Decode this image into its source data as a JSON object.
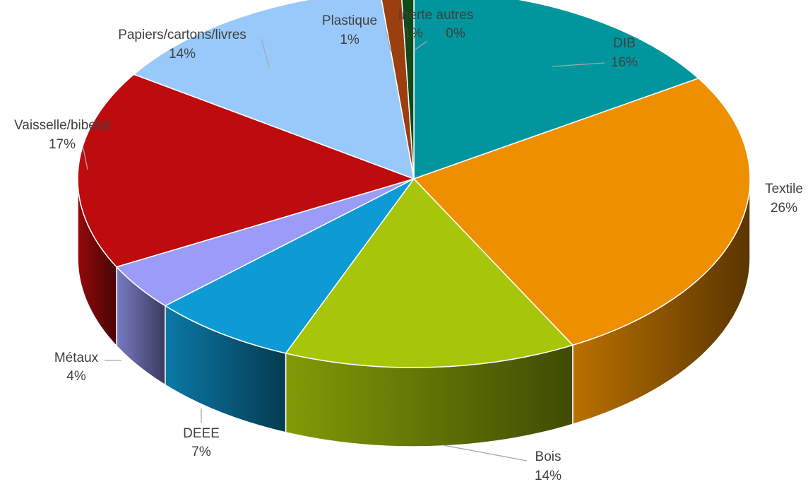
{
  "chart_data": {
    "type": "pie",
    "style": "3d",
    "grid": false,
    "legend": "none",
    "title": "",
    "slices": [
      {
        "name": "DIB",
        "value": 16,
        "label": "16%",
        "color": "#01969E"
      },
      {
        "name": "Textile",
        "value": 26,
        "label": "26%",
        "color": "#EE8F00"
      },
      {
        "name": "Bois",
        "value": 14,
        "label": "14%",
        "color": "#A8C609"
      },
      {
        "name": "DEEE",
        "value": 7,
        "label": "7%",
        "color": "#0E9BD5"
      },
      {
        "name": "Métaux",
        "value": 4,
        "label": "4%",
        "color": "#9A9CF7"
      },
      {
        "name": "Vaisselle/bibelot",
        "value": 17,
        "label": "17%",
        "color": "#BD0B0E"
      },
      {
        "name": "Papiers/cartons/livres",
        "value": 14,
        "label": "14%",
        "color": "#99C9FA"
      },
      {
        "name": "Plastique",
        "value": 1,
        "label": "1%",
        "color": "#9B3E10"
      },
      {
        "name": "Inerte autres",
        "value": 0.6,
        "label": "1%",
        "color": "#0F4A1A"
      },
      {
        "name": "",
        "value": 0,
        "label": "0%",
        "color": "#1E5A2A"
      }
    ]
  }
}
